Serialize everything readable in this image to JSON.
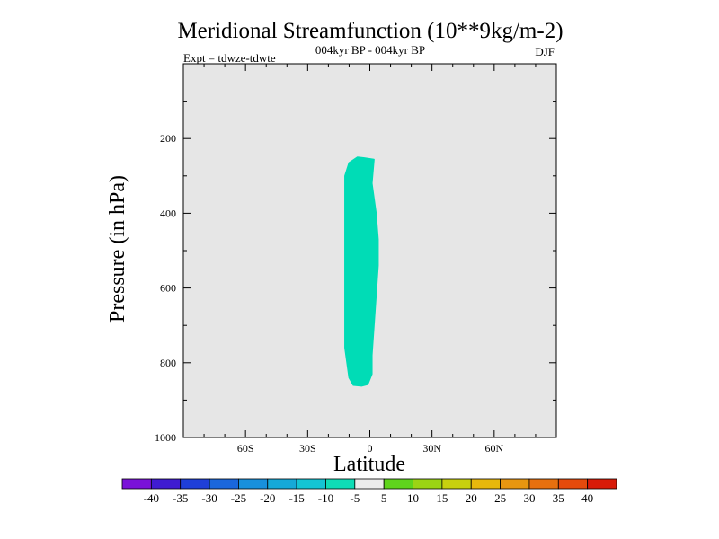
{
  "chart_data": {
    "type": "heatmap",
    "title": "Meridional Streamfunction (10**9kg/m-2)",
    "subtitle": "004kyr BP - 004kyr BP",
    "left_label": "Expt = tdwze-tdwte",
    "right_label": "DJF",
    "xlabel": "Latitude",
    "ylabel": "Pressure (in hPa)",
    "xlim": [
      -90,
      90
    ],
    "ylim": [
      1000,
      0
    ],
    "xticks": [
      {
        "value": -60,
        "label": "60S"
      },
      {
        "value": -30,
        "label": "30S"
      },
      {
        "value": 0,
        "label": "0"
      },
      {
        "value": 30,
        "label": "30N"
      },
      {
        "value": 60,
        "label": "60N"
      }
    ],
    "yticks": [
      {
        "value": 200,
        "label": "200"
      },
      {
        "value": 400,
        "label": "400"
      },
      {
        "value": 600,
        "label": "600"
      },
      {
        "value": 800,
        "label": "800"
      },
      {
        "value": 1000,
        "label": "1000"
      }
    ],
    "background_color": "#e6e6e6",
    "contour_levels": [
      -40,
      -35,
      -30,
      -25,
      -20,
      -15,
      -10,
      -5,
      5,
      10,
      15,
      20,
      25,
      30,
      35,
      40
    ],
    "colorbar_colors": [
      "#7a12d8",
      "#3f1bd2",
      "#1f3fd8",
      "#1a67dc",
      "#1890dc",
      "#16a9d8",
      "#14c4d4",
      "#0fdcb6",
      "#ececec",
      "#5fd41c",
      "#9bd414",
      "#c8d00e",
      "#e8b80c",
      "#e89610",
      "#e8700e",
      "#e54a0c",
      "#d81a08"
    ],
    "shaded_regions": [
      {
        "range": [
          -10,
          -5
        ],
        "color": "#00dcb6",
        "outline": [
          [
            -6,
            250
          ],
          [
            -3,
            252
          ],
          [
            2,
            256
          ],
          [
            1,
            320
          ],
          [
            3,
            400
          ],
          [
            4,
            470
          ],
          [
            4,
            540
          ],
          [
            3,
            620
          ],
          [
            2,
            700
          ],
          [
            1,
            780
          ],
          [
            1,
            830
          ],
          [
            -1,
            858
          ],
          [
            -4,
            862
          ],
          [
            -8,
            860
          ],
          [
            -10,
            840
          ],
          [
            -11,
            800
          ],
          [
            -12,
            760
          ],
          [
            -12,
            700
          ],
          [
            -12,
            640
          ],
          [
            -12,
            570
          ],
          [
            -12,
            500
          ],
          [
            -12,
            430
          ],
          [
            -12,
            360
          ],
          [
            -12,
            300
          ],
          [
            -10,
            265
          ]
        ]
      }
    ]
  }
}
